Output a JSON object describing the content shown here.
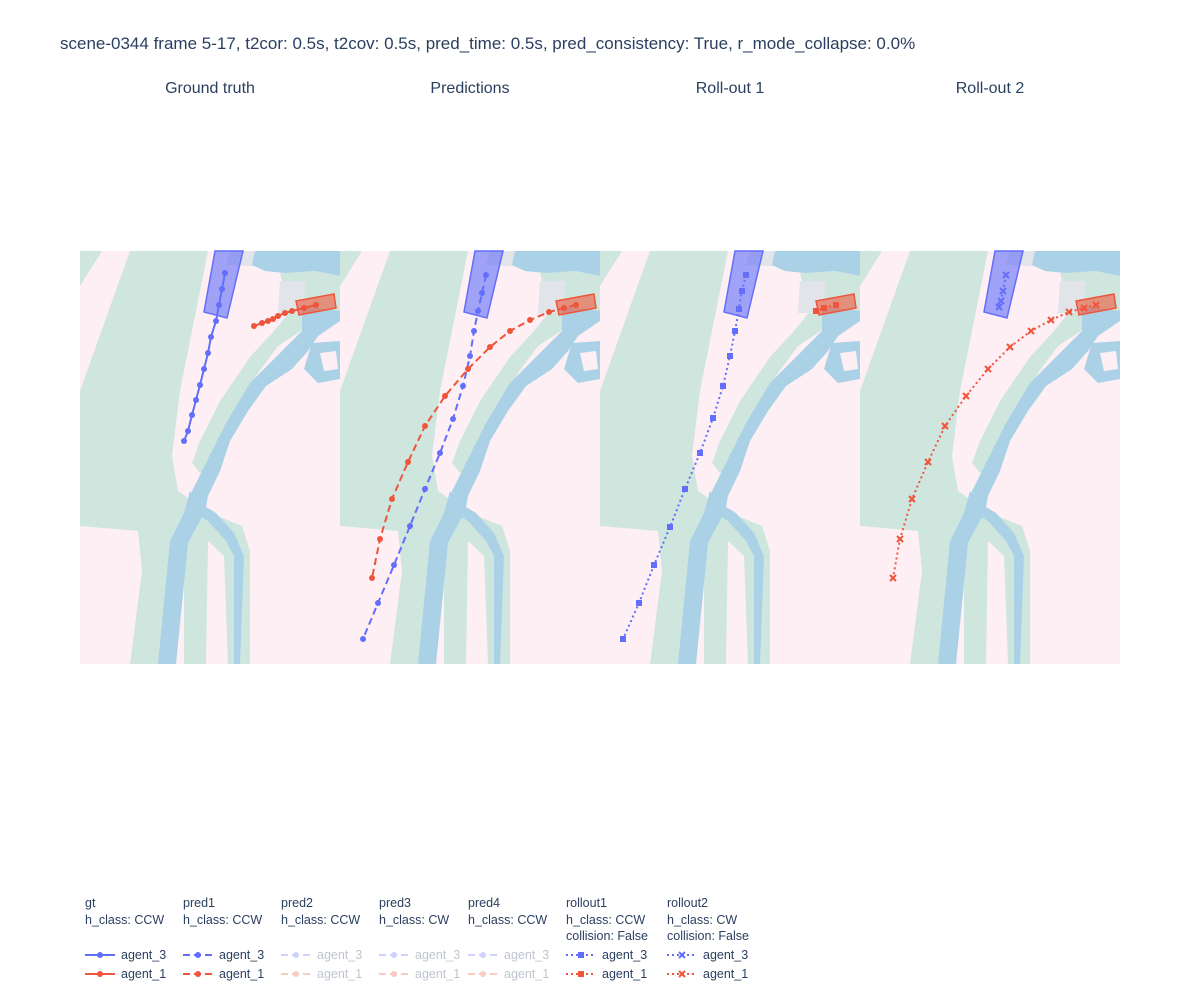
{
  "title": "scene-0344 frame 5-17, t2cor: 0.5s, t2cov: 0.5s, pred_time: 0.5s, pred_consistency: True, r_mode_collapse: 0.0%",
  "colors": {
    "agent_3": "#636efa",
    "agent_1": "#ef553b",
    "lane": "#cfe6df",
    "walkway": "#aad1e6",
    "background": "#fdeff4",
    "crossing": "#e1e4e9"
  },
  "chart_data": [
    {
      "type": "scatter",
      "title": "Ground truth",
      "series": [
        {
          "name": "agent_3",
          "mode": "lines+markers",
          "marker": "circle",
          "dash": "solid",
          "points": [
            [
              145,
              22
            ],
            [
              142,
              38
            ],
            [
              139,
              54
            ],
            [
              136,
              70
            ],
            [
              131,
              86
            ],
            [
              128,
              102
            ],
            [
              124,
              118
            ],
            [
              120,
              134
            ],
            [
              116,
              149
            ],
            [
              112,
              164
            ],
            [
              108,
              180
            ],
            [
              104,
              190
            ]
          ]
        },
        {
          "name": "agent_1",
          "mode": "lines+markers",
          "marker": "circle",
          "dash": "solid",
          "points": [
            [
              236,
              54
            ],
            [
              224,
              57
            ],
            [
              212,
              60
            ],
            [
              205,
              62
            ],
            [
              198,
              65
            ],
            [
              193,
              68
            ],
            [
              188,
              70
            ],
            [
              182,
              72
            ],
            [
              174,
              75
            ]
          ]
        }
      ]
    },
    {
      "type": "scatter",
      "title": "Predictions",
      "series": [
        {
          "name": "agent_3",
          "mode": "lines+markers",
          "marker": "circle",
          "dash": "dash",
          "points": [
            [
              146,
              24
            ],
            [
              142,
              42
            ],
            [
              138,
              60
            ],
            [
              134,
              80
            ],
            [
              130,
              105
            ],
            [
              123,
              135
            ],
            [
              113,
              168
            ],
            [
              100,
              202
            ],
            [
              85,
              238
            ],
            [
              70,
              275
            ],
            [
              54,
              314
            ],
            [
              38,
              352
            ],
            [
              23,
              388
            ]
          ]
        },
        {
          "name": "agent_1",
          "mode": "lines+markers",
          "marker": "circle",
          "dash": "dash",
          "points": [
            [
              236,
              54
            ],
            [
              224,
              57
            ],
            [
              209,
              61
            ],
            [
              190,
              69
            ],
            [
              170,
              80
            ],
            [
              150,
              96
            ],
            [
              128,
              118
            ],
            [
              105,
              145
            ],
            [
              85,
              175
            ],
            [
              68,
              211
            ],
            [
              52,
              248
            ],
            [
              40,
              288
            ],
            [
              32,
              327
            ]
          ]
        }
      ]
    },
    {
      "type": "scatter",
      "title": "Roll-out 1",
      "series": [
        {
          "name": "agent_3",
          "mode": "lines+markers",
          "marker": "square",
          "dash": "dot",
          "points": [
            [
              146,
              24
            ],
            [
              142,
              40
            ],
            [
              139,
              58
            ],
            [
              135,
              80
            ],
            [
              130,
              105
            ],
            [
              123,
              135
            ],
            [
              113,
              167
            ],
            [
              100,
              202
            ],
            [
              85,
              238
            ],
            [
              70,
              276
            ],
            [
              54,
              314
            ],
            [
              39,
              352
            ],
            [
              23,
              388
            ]
          ]
        },
        {
          "name": "agent_1",
          "mode": "lines+markers",
          "marker": "square",
          "dash": "dot",
          "points": [
            [
              236,
              54
            ],
            [
              224,
              57
            ],
            [
              216,
              60
            ]
          ]
        }
      ]
    },
    {
      "type": "scatter",
      "title": "Roll-out 2",
      "series": [
        {
          "name": "agent_3",
          "mode": "lines+markers",
          "marker": "x",
          "dash": "dot",
          "points": [
            [
              146,
              24
            ],
            [
              143,
              40
            ],
            [
              141,
              50
            ],
            [
              139,
              56
            ]
          ]
        },
        {
          "name": "agent_1",
          "mode": "lines+markers",
          "marker": "x",
          "dash": "dot",
          "points": [
            [
              236,
              54
            ],
            [
              224,
              57
            ],
            [
              209,
              61
            ],
            [
              191,
              69
            ],
            [
              171,
              80
            ],
            [
              150,
              96
            ],
            [
              128,
              118
            ],
            [
              106,
              145
            ],
            [
              85,
              175
            ],
            [
              68,
              211
            ],
            [
              52,
              248
            ],
            [
              40,
              288
            ],
            [
              33,
              327
            ]
          ]
        }
      ]
    }
  ],
  "legend": [
    {
      "name": "gt",
      "h_class": "h_class: CCW",
      "collision": "",
      "marker": "circle",
      "dash": "solid",
      "faded": false,
      "items": [
        "agent_3",
        "agent_1"
      ]
    },
    {
      "name": "pred1",
      "h_class": "h_class: CCW",
      "collision": "",
      "marker": "circle",
      "dash": "dash",
      "faded": false,
      "items": [
        "agent_3",
        "agent_1"
      ]
    },
    {
      "name": "pred2",
      "h_class": "h_class: CCW",
      "collision": "",
      "marker": "circle",
      "dash": "dash",
      "faded": true,
      "items": [
        "agent_3",
        "agent_1"
      ]
    },
    {
      "name": "pred3",
      "h_class": "h_class: CW",
      "collision": "",
      "marker": "circle",
      "dash": "dash",
      "faded": true,
      "items": [
        "agent_3",
        "agent_1"
      ]
    },
    {
      "name": "pred4",
      "h_class": "h_class: CCW",
      "collision": "",
      "marker": "circle",
      "dash": "dash",
      "faded": true,
      "items": [
        "agent_3",
        "agent_1"
      ]
    },
    {
      "name": "rollout1",
      "h_class": "h_class: CCW",
      "collision": "collision: False",
      "marker": "square",
      "dash": "dot",
      "faded": false,
      "items": [
        "agent_3",
        "agent_1"
      ]
    },
    {
      "name": "rollout2",
      "h_class": "h_class: CW",
      "collision": "collision: False",
      "marker": "x",
      "dash": "dot",
      "faded": false,
      "items": [
        "agent_3",
        "agent_1"
      ]
    }
  ]
}
